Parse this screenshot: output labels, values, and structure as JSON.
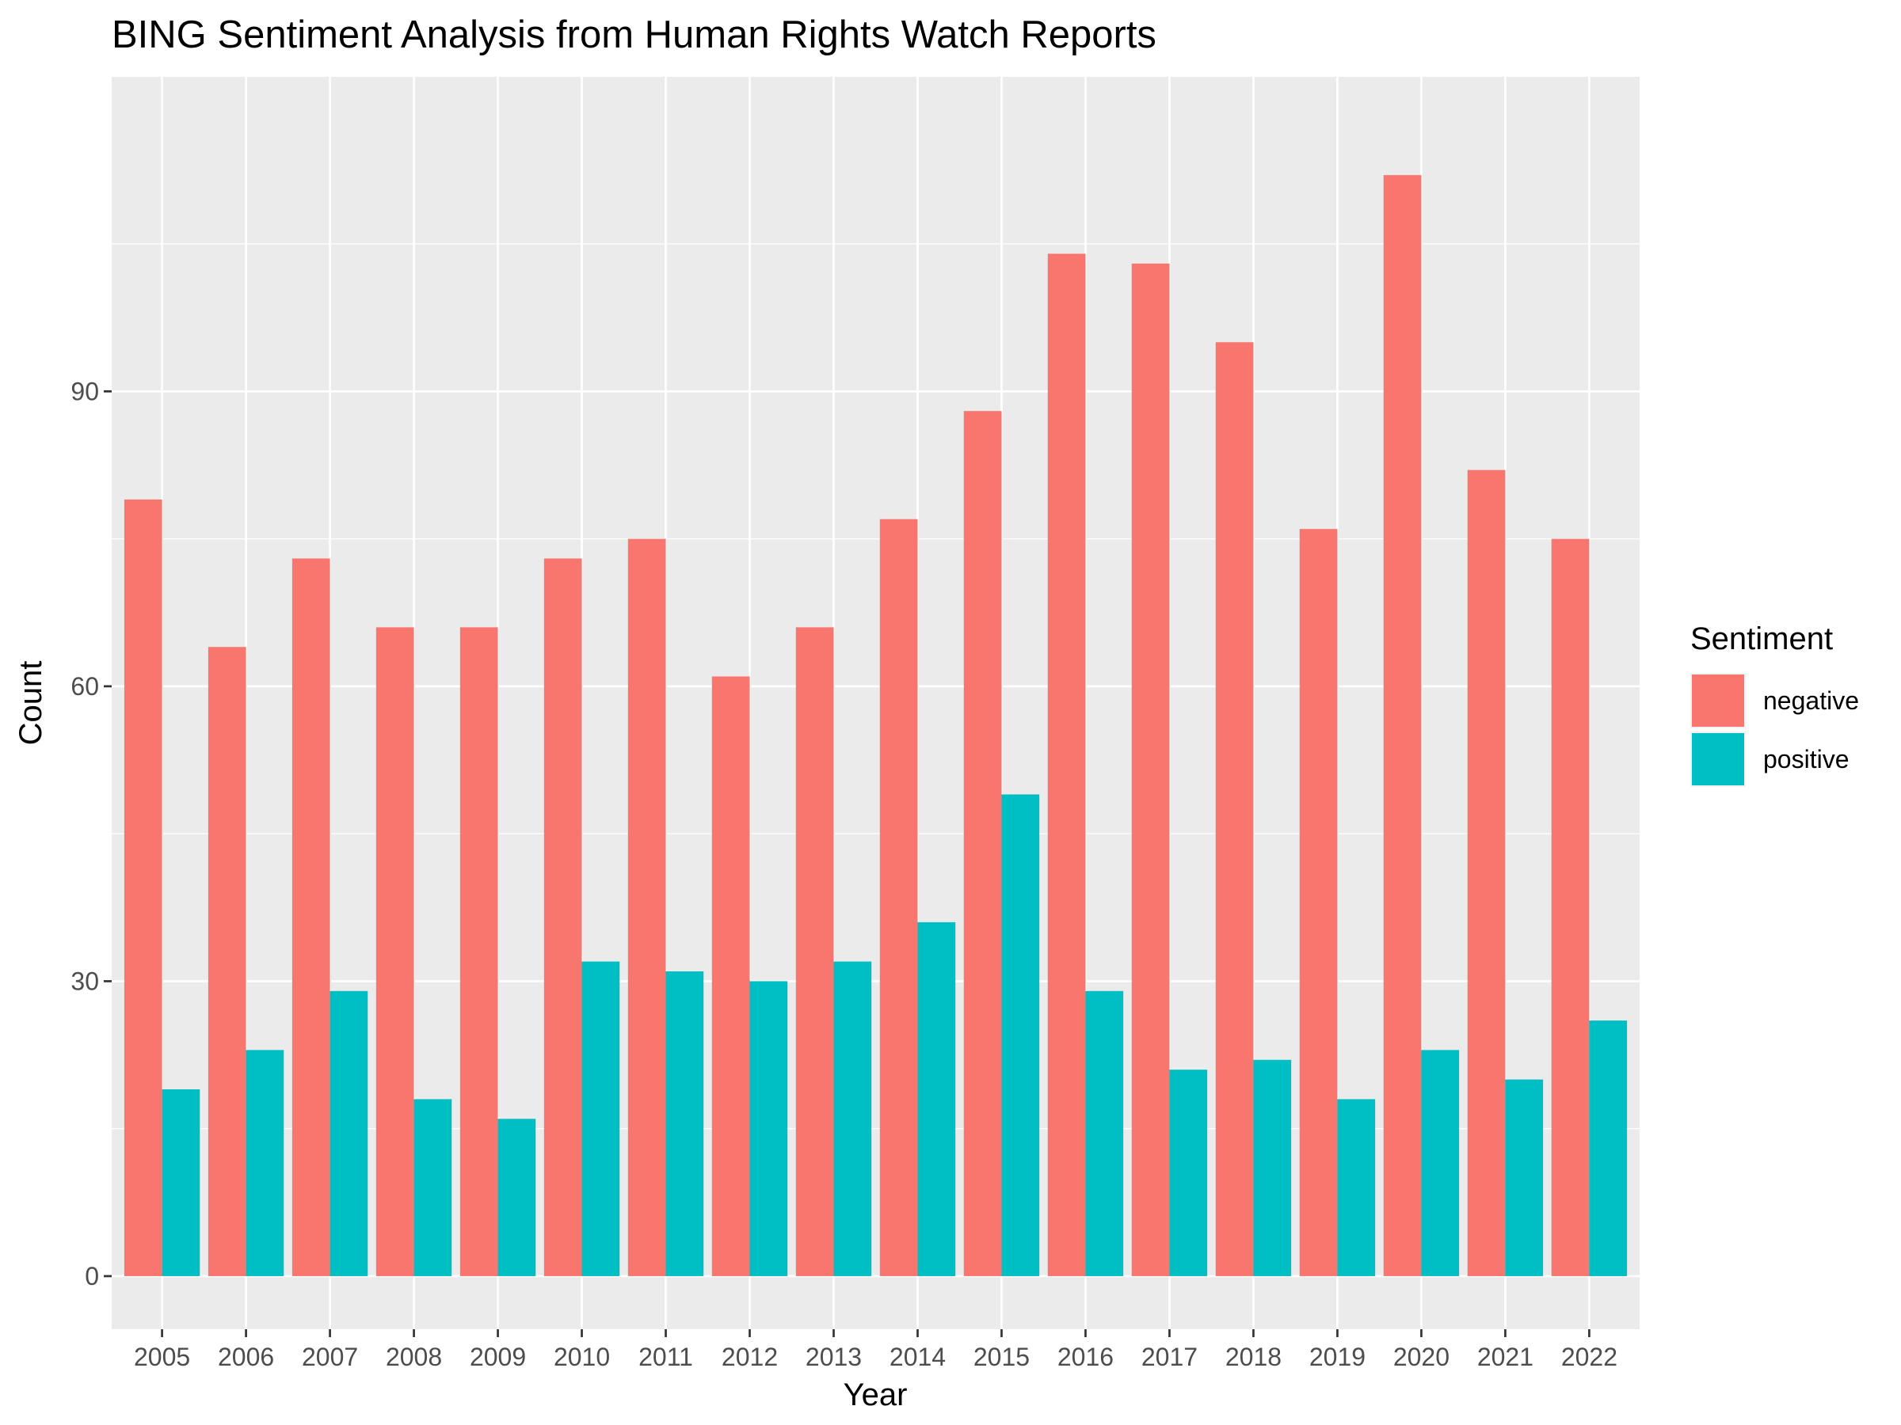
{
  "chart_data": {
    "type": "bar",
    "title": "BING Sentiment Analysis from Human Rights Watch Reports",
    "xlabel": "Year",
    "ylabel": "Count",
    "ylim": [
      -5.4,
      122
    ],
    "yticks": [
      0,
      30,
      60,
      90
    ],
    "categories": [
      "2005",
      "2006",
      "2007",
      "2008",
      "2009",
      "2010",
      "2011",
      "2012",
      "2013",
      "2014",
      "2015",
      "2016",
      "2017",
      "2018",
      "2019",
      "2020",
      "2021",
      "2022"
    ],
    "legend": {
      "title": "Sentiment",
      "position": "right"
    },
    "grid": true,
    "series": [
      {
        "name": "negative",
        "color": "#F8766D",
        "values": [
          79,
          64,
          73,
          66,
          66,
          73,
          75,
          61,
          66,
          77,
          88,
          104,
          103,
          95,
          76,
          112,
          82,
          75
        ]
      },
      {
        "name": "positive",
        "color": "#00BFC4",
        "values": [
          19,
          23,
          29,
          18,
          16,
          32,
          31,
          30,
          32,
          36,
          49,
          29,
          21,
          22,
          18,
          23,
          20,
          26
        ]
      }
    ]
  }
}
